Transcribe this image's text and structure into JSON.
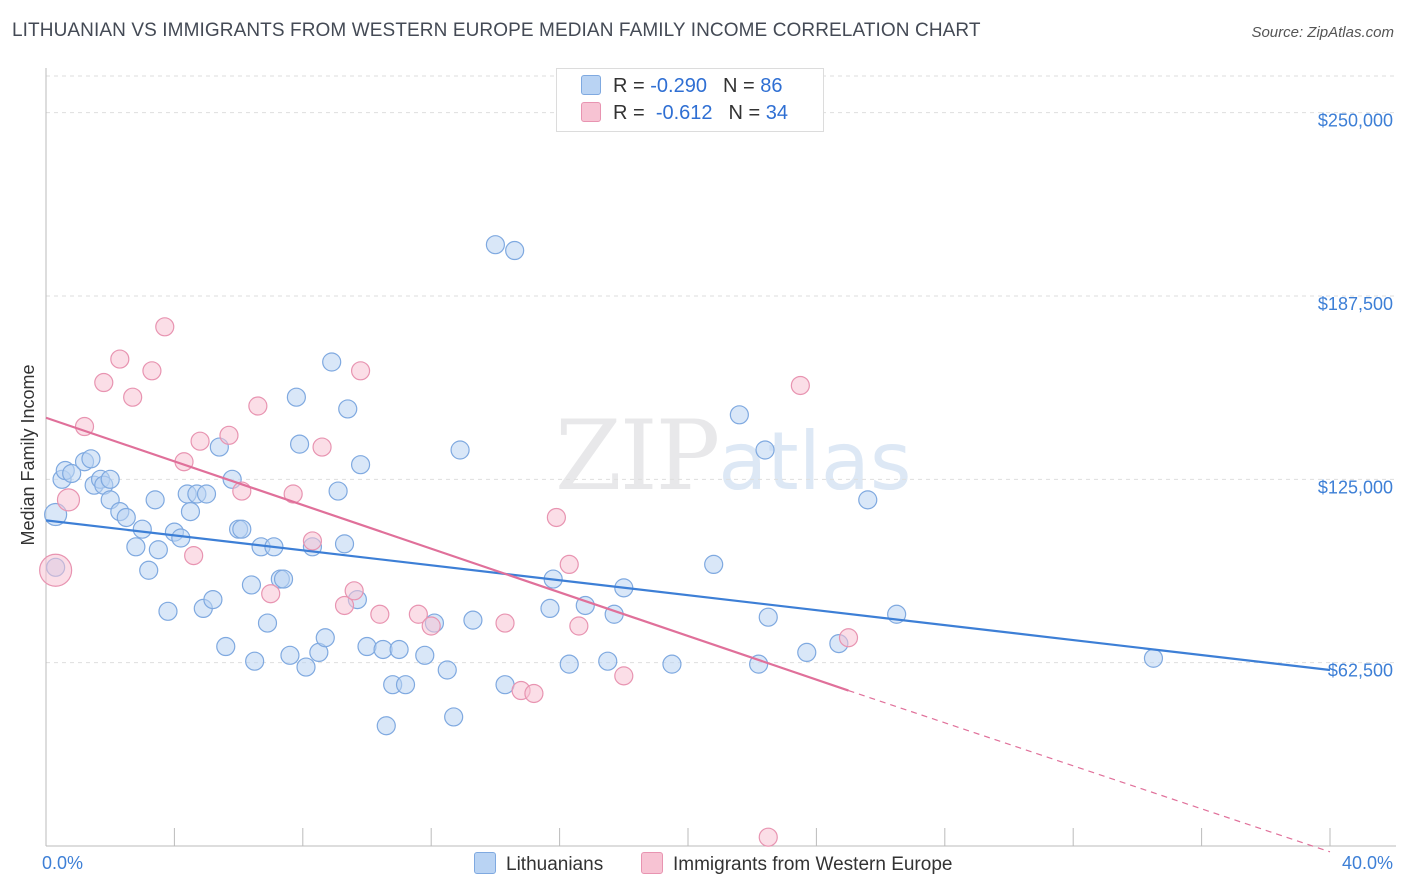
{
  "title": "LITHUANIAN VS IMMIGRANTS FROM WESTERN EUROPE MEDIAN FAMILY INCOME CORRELATION CHART",
  "source": "Source: ZipAtlas.com",
  "watermark": {
    "zip": "ZIP",
    "atlas": "atlas"
  },
  "legend": {
    "r_label": "R =",
    "n_label": "N =",
    "rows": [
      {
        "r": "-0.290",
        "n": "86"
      },
      {
        "r": "-0.612",
        "n": "34"
      }
    ]
  },
  "colors": {
    "blue": "#3d7fd6",
    "blue_fill": "#b9d3f3",
    "pink": "#e0709a",
    "pink_fill": "#f7c3d3",
    "grid": "#dedede"
  },
  "chart_data": {
    "type": "scatter",
    "xlabel": "",
    "ylabel": "Median Family Income",
    "xlim": [
      0,
      40
    ],
    "ylim": [
      0,
      262500
    ],
    "x_tick_labels": [
      "0.0%",
      "40.0%"
    ],
    "y_ticks": [
      {
        "value": 62500,
        "label": "$62,500"
      },
      {
        "value": 125000,
        "label": "$125,000"
      },
      {
        "value": 187500,
        "label": "$187,500"
      },
      {
        "value": 250000,
        "label": "$250,000"
      }
    ],
    "series": [
      {
        "name": "Lithuanians",
        "color": "#3d7fd6",
        "trend": {
          "x0": 0,
          "y0": 111000,
          "x1": 40,
          "y1": 60000
        },
        "points": [
          [
            0.3,
            95000
          ],
          [
            0.3,
            113000
          ],
          [
            0.5,
            125000
          ],
          [
            0.6,
            128000
          ],
          [
            0.8,
            127000
          ],
          [
            1.2,
            131000
          ],
          [
            1.4,
            132000
          ],
          [
            1.5,
            123000
          ],
          [
            1.7,
            125000
          ],
          [
            1.8,
            123000
          ],
          [
            2.0,
            125000
          ],
          [
            2.0,
            118000
          ],
          [
            2.3,
            114000
          ],
          [
            2.5,
            112000
          ],
          [
            2.8,
            102000
          ],
          [
            3.0,
            108000
          ],
          [
            3.2,
            94000
          ],
          [
            3.4,
            118000
          ],
          [
            3.5,
            101000
          ],
          [
            3.8,
            80000
          ],
          [
            4.0,
            107000
          ],
          [
            4.2,
            105000
          ],
          [
            4.4,
            120000
          ],
          [
            4.5,
            114000
          ],
          [
            4.7,
            120000
          ],
          [
            4.9,
            81000
          ],
          [
            5.0,
            120000
          ],
          [
            5.2,
            84000
          ],
          [
            5.4,
            136000
          ],
          [
            5.6,
            68000
          ],
          [
            5.8,
            125000
          ],
          [
            6.0,
            108000
          ],
          [
            6.1,
            108000
          ],
          [
            6.4,
            89000
          ],
          [
            6.5,
            63000
          ],
          [
            6.7,
            102000
          ],
          [
            6.9,
            76000
          ],
          [
            7.1,
            102000
          ],
          [
            7.3,
            91000
          ],
          [
            7.4,
            91000
          ],
          [
            7.6,
            65000
          ],
          [
            7.8,
            153000
          ],
          [
            7.9,
            137000
          ],
          [
            8.1,
            61000
          ],
          [
            8.3,
            102000
          ],
          [
            8.5,
            66000
          ],
          [
            8.7,
            71000
          ],
          [
            8.9,
            165000
          ],
          [
            9.1,
            121000
          ],
          [
            9.3,
            103000
          ],
          [
            9.4,
            149000
          ],
          [
            9.7,
            84000
          ],
          [
            9.8,
            130000
          ],
          [
            10.0,
            68000
          ],
          [
            10.5,
            67000
          ],
          [
            10.6,
            41000
          ],
          [
            10.8,
            55000
          ],
          [
            11.0,
            67000
          ],
          [
            11.2,
            55000
          ],
          [
            11.8,
            65000
          ],
          [
            12.1,
            76000
          ],
          [
            12.5,
            60000
          ],
          [
            12.7,
            44000
          ],
          [
            12.9,
            135000
          ],
          [
            13.3,
            77000
          ],
          [
            14.0,
            205000
          ],
          [
            14.3,
            55000
          ],
          [
            14.6,
            203000
          ],
          [
            15.7,
            81000
          ],
          [
            15.8,
            91000
          ],
          [
            16.3,
            62000
          ],
          [
            16.8,
            82000
          ],
          [
            17.5,
            63000
          ],
          [
            17.7,
            79000
          ],
          [
            18.0,
            88000
          ],
          [
            19.5,
            62000
          ],
          [
            20.8,
            96000
          ],
          [
            21.6,
            147000
          ],
          [
            22.2,
            62000
          ],
          [
            22.4,
            135000
          ],
          [
            22.5,
            78000
          ],
          [
            23.7,
            66000
          ],
          [
            24.7,
            69000
          ],
          [
            25.6,
            118000
          ],
          [
            26.5,
            79000
          ],
          [
            34.5,
            64000
          ]
        ]
      },
      {
        "name": "Immigrants from Western Europe",
        "color": "#e0709a",
        "trend": {
          "x0": 0,
          "y0": 146000,
          "x1": 25,
          "y1": 53000,
          "dash_x1": 40,
          "dash_y1": -2000
        },
        "points": [
          [
            0.3,
            94000
          ],
          [
            0.7,
            118000
          ],
          [
            1.2,
            143000
          ],
          [
            1.8,
            158000
          ],
          [
            2.3,
            166000
          ],
          [
            2.7,
            153000
          ],
          [
            3.3,
            162000
          ],
          [
            3.7,
            177000
          ],
          [
            4.3,
            131000
          ],
          [
            4.6,
            99000
          ],
          [
            4.8,
            138000
          ],
          [
            5.7,
            140000
          ],
          [
            6.1,
            121000
          ],
          [
            6.6,
            150000
          ],
          [
            7.0,
            86000
          ],
          [
            7.7,
            120000
          ],
          [
            8.3,
            104000
          ],
          [
            8.6,
            136000
          ],
          [
            9.3,
            82000
          ],
          [
            9.6,
            87000
          ],
          [
            9.8,
            162000
          ],
          [
            10.4,
            79000
          ],
          [
            11.6,
            79000
          ],
          [
            12.0,
            75000
          ],
          [
            14.3,
            76000
          ],
          [
            14.8,
            53000
          ],
          [
            15.2,
            52000
          ],
          [
            15.9,
            112000
          ],
          [
            16.3,
            96000
          ],
          [
            16.6,
            75000
          ],
          [
            18.0,
            58000
          ],
          [
            22.5,
            3000
          ],
          [
            23.5,
            157000
          ],
          [
            25.0,
            71000
          ]
        ]
      }
    ]
  }
}
